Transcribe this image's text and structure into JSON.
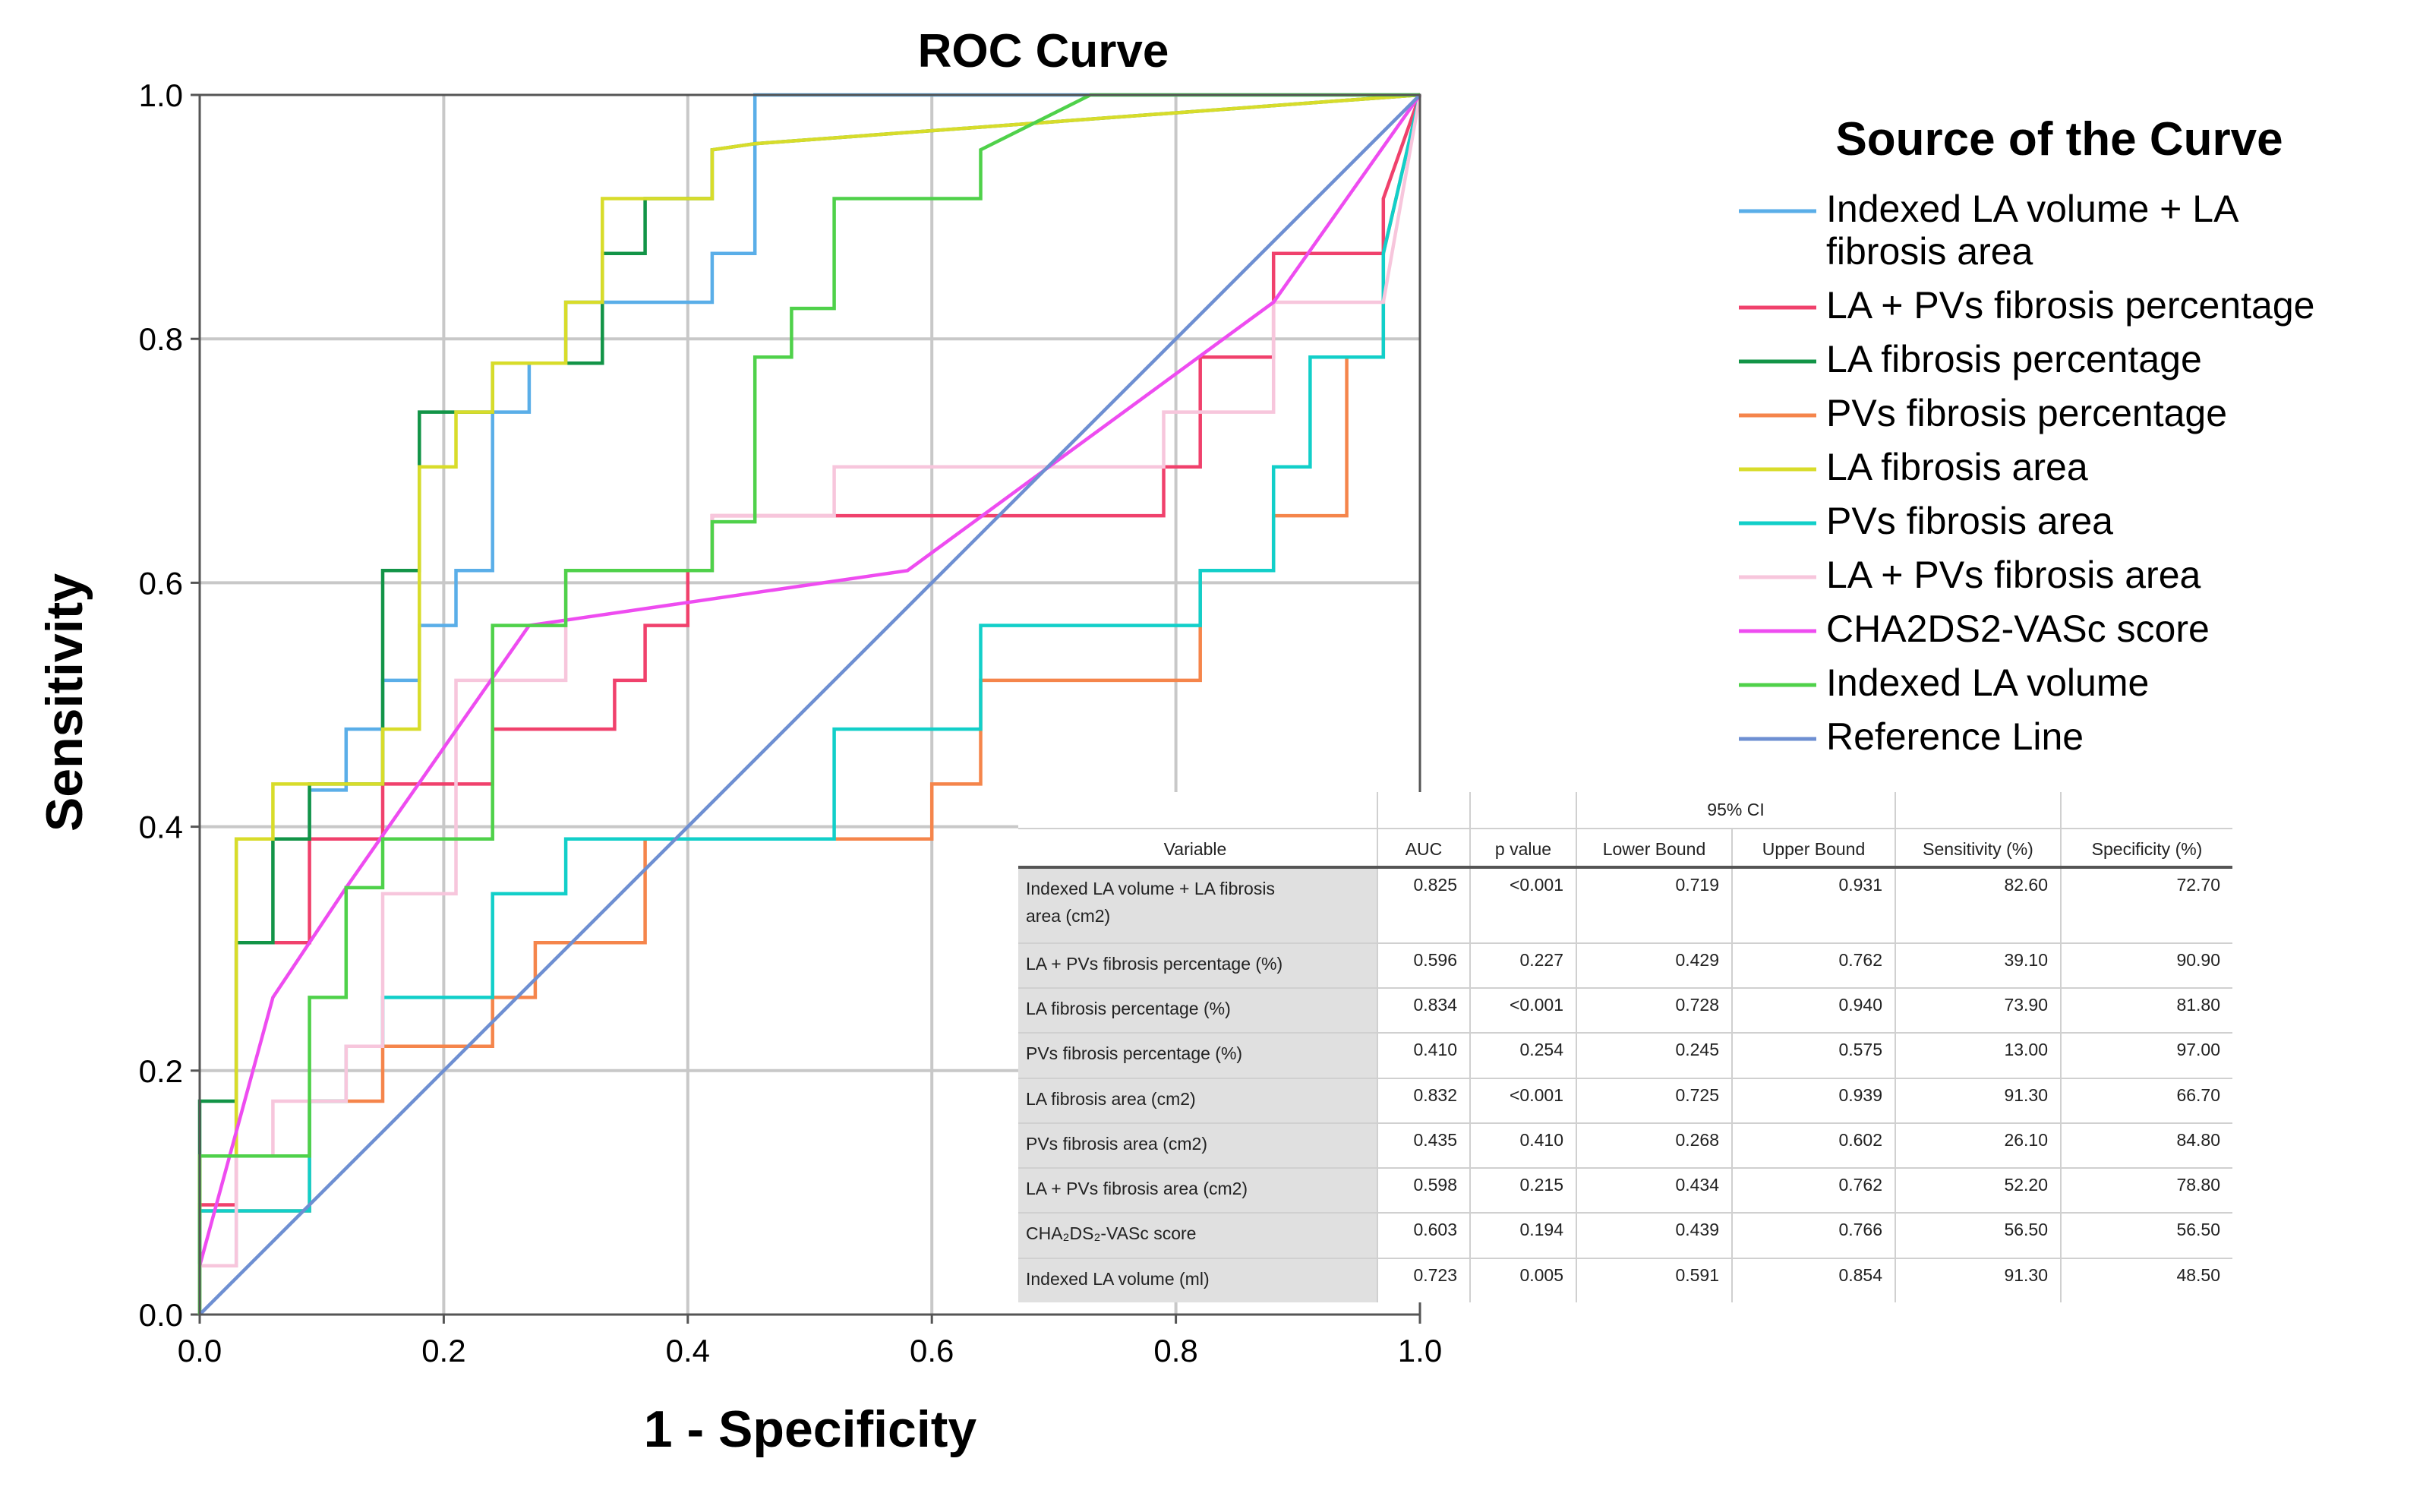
{
  "chart_data": {
    "type": "line",
    "title": "ROC Curve",
    "xlabel": "1 - Specificity",
    "ylabel": "Sensitivity",
    "xlim": [
      0,
      1
    ],
    "ylim": [
      0,
      1
    ],
    "xticks": [
      "0.0",
      "0.2",
      "0.4",
      "0.6",
      "0.8",
      "1.0"
    ],
    "yticks": [
      "0.0",
      "0.2",
      "0.4",
      "0.6",
      "0.8",
      "1.0"
    ],
    "grid": true,
    "legend_title": "Source of the Curve",
    "legend_position": "right",
    "series": [
      {
        "name": "Indexed LA volume + LA fibrosis area",
        "label_lines": [
          "Indexed LA volume + LA",
          "fibrosis area"
        ],
        "color": "#5aaee8",
        "x": [
          0,
          0,
          0.03,
          0.03,
          0.09,
          0.09,
          0.12,
          0.12,
          0.15,
          0.15,
          0.18,
          0.18,
          0.21,
          0.21,
          0.24,
          0.24,
          0.27,
          0.27,
          0.3,
          0.3,
          0.42,
          0.42,
          0.455,
          0.455,
          1
        ],
        "y": [
          0,
          0.04,
          0.04,
          0.39,
          0.39,
          0.43,
          0.43,
          0.48,
          0.48,
          0.52,
          0.52,
          0.565,
          0.565,
          0.61,
          0.61,
          0.74,
          0.74,
          0.78,
          0.78,
          0.83,
          0.83,
          0.87,
          0.87,
          1,
          1
        ]
      },
      {
        "name": "LA + PVs fibrosis percentage",
        "color": "#f0416c",
        "x": [
          0,
          0,
          0.03,
          0.03,
          0.09,
          0.09,
          0.15,
          0.15,
          0.24,
          0.24,
          0.34,
          0.34,
          0.365,
          0.365,
          0.4,
          0.4,
          0.42,
          0.42,
          0.79,
          0.79,
          0.82,
          0.82,
          0.88,
          0.88,
          0.97,
          0.97,
          1
        ],
        "y": [
          0,
          0.09,
          0.09,
          0.305,
          0.305,
          0.39,
          0.39,
          0.435,
          0.435,
          0.48,
          0.48,
          0.52,
          0.52,
          0.565,
          0.565,
          0.61,
          0.61,
          0.655,
          0.655,
          0.695,
          0.695,
          0.785,
          0.785,
          0.87,
          0.87,
          0.915,
          1
        ]
      },
      {
        "name": "LA fibrosis percentage",
        "color": "#129447",
        "x": [
          0,
          0,
          0.03,
          0.03,
          0.06,
          0.06,
          0.09,
          0.09,
          0.15,
          0.15,
          0.18,
          0.18,
          0.24,
          0.24,
          0.33,
          0.33,
          0.365,
          0.365,
          0.42,
          0.42,
          0.455,
          1
        ],
        "y": [
          0,
          0.175,
          0.175,
          0.305,
          0.305,
          0.39,
          0.39,
          0.435,
          0.435,
          0.61,
          0.61,
          0.74,
          0.74,
          0.78,
          0.78,
          0.87,
          0.87,
          0.915,
          0.915,
          0.955,
          0.96,
          1
        ]
      },
      {
        "name": "PVs fibrosis percentage",
        "color": "#f5854b",
        "x": [
          0,
          0,
          0.03,
          0.03,
          0.09,
          0.09,
          0.15,
          0.15,
          0.24,
          0.24,
          0.275,
          0.275,
          0.365,
          0.365,
          0.6,
          0.6,
          0.64,
          0.64,
          0.82,
          0.82,
          0.88,
          0.88,
          0.94,
          0.94,
          0.97,
          0.97,
          1
        ],
        "y": [
          0,
          0.085,
          0.085,
          0.085,
          0.085,
          0.175,
          0.175,
          0.22,
          0.22,
          0.26,
          0.26,
          0.305,
          0.305,
          0.39,
          0.39,
          0.435,
          0.435,
          0.52,
          0.52,
          0.61,
          0.61,
          0.655,
          0.655,
          0.785,
          0.785,
          0.87,
          1
        ]
      },
      {
        "name": "LA fibrosis area",
        "color": "#d8dc2a",
        "x": [
          0,
          0,
          0.03,
          0.03,
          0.06,
          0.06,
          0.15,
          0.15,
          0.18,
          0.18,
          0.21,
          0.21,
          0.24,
          0.24,
          0.3,
          0.3,
          0.33,
          0.33,
          0.42,
          0.42,
          0.455,
          1
        ],
        "y": [
          0,
          0.13,
          0.13,
          0.39,
          0.39,
          0.435,
          0.435,
          0.48,
          0.48,
          0.695,
          0.695,
          0.74,
          0.74,
          0.78,
          0.78,
          0.83,
          0.83,
          0.915,
          0.915,
          0.955,
          0.96,
          1
        ]
      },
      {
        "name": "PVs fibrosis area",
        "color": "#12cfc9",
        "x": [
          0,
          0,
          0.09,
          0.09,
          0.12,
          0.12,
          0.15,
          0.15,
          0.24,
          0.24,
          0.3,
          0.3,
          0.52,
          0.52,
          0.64,
          0.64,
          0.82,
          0.82,
          0.88,
          0.88,
          0.91,
          0.91,
          0.97,
          0.97,
          1
        ],
        "y": [
          0,
          0.085,
          0.085,
          0.175,
          0.175,
          0.22,
          0.22,
          0.26,
          0.26,
          0.345,
          0.345,
          0.39,
          0.39,
          0.48,
          0.48,
          0.565,
          0.565,
          0.61,
          0.61,
          0.695,
          0.695,
          0.785,
          0.785,
          0.87,
          1
        ]
      },
      {
        "name": "LA + PVs fibrosis area",
        "color": "#f7c6dc",
        "x": [
          0,
          0,
          0.03,
          0.03,
          0.06,
          0.06,
          0.12,
          0.12,
          0.15,
          0.15,
          0.21,
          0.21,
          0.3,
          0.3,
          0.42,
          0.42,
          0.52,
          0.52,
          0.79,
          0.79,
          0.88,
          0.88,
          0.97,
          1
        ],
        "y": [
          0,
          0.04,
          0.04,
          0.13,
          0.13,
          0.175,
          0.175,
          0.22,
          0.22,
          0.345,
          0.345,
          0.52,
          0.52,
          0.61,
          0.61,
          0.655,
          0.655,
          0.695,
          0.695,
          0.74,
          0.74,
          0.83,
          0.83,
          1
        ]
      },
      {
        "name": "CHA2DS2-VASc score",
        "color": "#ee4cf0",
        "x": [
          0,
          0.06,
          0.12,
          0.27,
          0.58,
          0.88,
          1
        ],
        "y": [
          0.04,
          0.26,
          0.35,
          0.565,
          0.61,
          0.83,
          1
        ]
      },
      {
        "name": "Indexed LA volume",
        "color": "#4fd14a",
        "x": [
          0,
          0,
          0.09,
          0.09,
          0.12,
          0.12,
          0.15,
          0.15,
          0.24,
          0.24,
          0.3,
          0.3,
          0.42,
          0.42,
          0.455,
          0.455,
          0.485,
          0.485,
          0.52,
          0.52,
          0.64,
          0.64,
          0.73,
          1
        ],
        "y": [
          0,
          0.13,
          0.13,
          0.26,
          0.26,
          0.35,
          0.35,
          0.39,
          0.39,
          0.565,
          0.565,
          0.61,
          0.61,
          0.65,
          0.65,
          0.785,
          0.785,
          0.825,
          0.825,
          0.915,
          0.915,
          0.955,
          1,
          1
        ]
      },
      {
        "name": "Reference Line",
        "color": "#6e8fd2",
        "x": [
          0,
          1
        ],
        "y": [
          0,
          1
        ]
      }
    ]
  },
  "stats_table": {
    "ci_header": "95% CI",
    "columns": [
      "Variable",
      "AUC",
      "p value",
      "Lower Bound",
      "Upper Bound",
      "Sensitivity (%)",
      "Specificity (%)"
    ],
    "rows": [
      {
        "variable_lines": [
          "Indexed LA volume + LA fibrosis",
          "area (cm2)"
        ],
        "auc": "0.825",
        "p": "<0.001",
        "lower": "0.719",
        "upper": "0.931",
        "sens": "82.60",
        "spec": "72.70"
      },
      {
        "variable_lines": [
          "LA + PVs fibrosis percentage (%)"
        ],
        "auc": "0.596",
        "p": "0.227",
        "lower": "0.429",
        "upper": "0.762",
        "sens": "39.10",
        "spec": "90.90"
      },
      {
        "variable_lines": [
          "LA fibrosis percentage (%)"
        ],
        "auc": "0.834",
        "p": "<0.001",
        "lower": "0.728",
        "upper": "0.940",
        "sens": "73.90",
        "spec": "81.80"
      },
      {
        "variable_lines": [
          "PVs fibrosis percentage (%)"
        ],
        "auc": "0.410",
        "p": "0.254",
        "lower": "0.245",
        "upper": "0.575",
        "sens": "13.00",
        "spec": "97.00"
      },
      {
        "variable_lines": [
          "LA fibrosis area (cm2)"
        ],
        "auc": "0.832",
        "p": "<0.001",
        "lower": "0.725",
        "upper": "0.939",
        "sens": "91.30",
        "spec": "66.70"
      },
      {
        "variable_lines": [
          "PVs fibrosis area (cm2)"
        ],
        "auc": "0.435",
        "p": "0.410",
        "lower": "0.268",
        "upper": "0.602",
        "sens": "26.10",
        "spec": "84.80"
      },
      {
        "variable_lines": [
          "LA + PVs fibrosis area (cm2)"
        ],
        "auc": "0.598",
        "p": "0.215",
        "lower": "0.434",
        "upper": "0.762",
        "sens": "52.20",
        "spec": "78.80"
      },
      {
        "variable_lines": [
          "CHA₂DS₂-VASc score"
        ],
        "auc": "0.603",
        "p": "0.194",
        "lower": "0.439",
        "upper": "0.766",
        "sens": "56.50",
        "spec": "56.50"
      },
      {
        "variable_lines": [
          "Indexed LA volume (ml)"
        ],
        "auc": "0.723",
        "p": "0.005",
        "lower": "0.591",
        "upper": "0.854",
        "sens": "91.30",
        "spec": "48.50"
      }
    ]
  }
}
